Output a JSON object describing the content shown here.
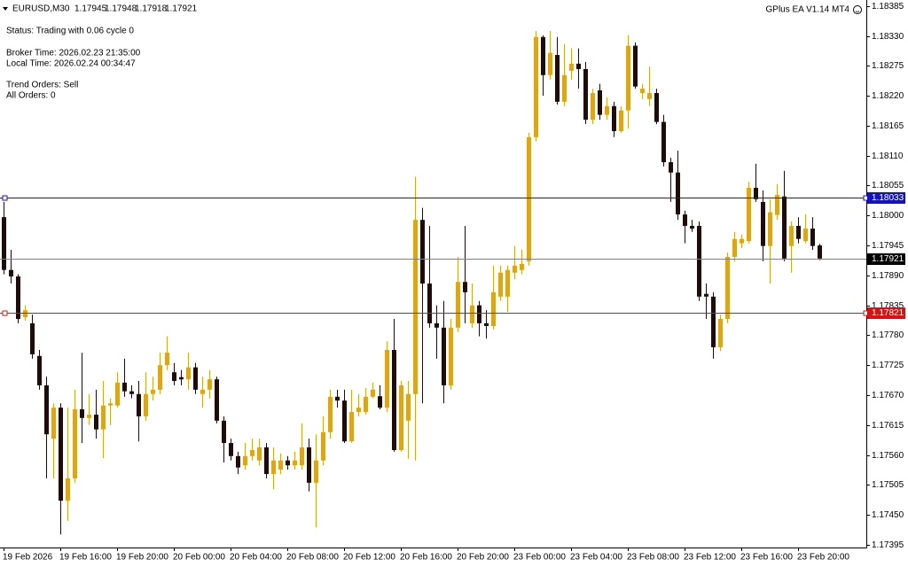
{
  "chart_data": {
    "type": "candlestick",
    "symbol": "EURUSD,M30",
    "ea_label": "GPlus EA  V1.14 MT4",
    "status": "Status: Trading with 0.06 cycle 0",
    "broker_time": "Broker Time: 2026.02.23 21:35:00",
    "local_time": "Local Time: 2026.02.24 00:34:47",
    "trend_orders": "Trend Orders: Sell",
    "all_orders": "All Orders: 0",
    "bull_color": "#daa520",
    "bear_color": "#1e0c0c",
    "bid_color": "#808080",
    "grid": false,
    "categories": [
      "19 Feb 2026",
      null,
      null,
      null,
      null,
      null,
      null,
      null,
      "19 Feb 16:00",
      null,
      null,
      null,
      null,
      null,
      null,
      null,
      "19 Feb 20:00",
      null,
      null,
      null,
      null,
      null,
      null,
      null,
      "20 Feb 00:00",
      null,
      null,
      null,
      null,
      null,
      null,
      null,
      "20 Feb 04:00",
      null,
      null,
      null,
      null,
      null,
      null,
      null,
      "20 Feb 08:00",
      null,
      null,
      null,
      null,
      null,
      null,
      null,
      "20 Feb 12:00",
      null,
      null,
      null,
      null,
      null,
      null,
      null,
      "20 Feb 16:00",
      null,
      null,
      null,
      null,
      null,
      null,
      null,
      "20 Feb 20:00",
      null,
      null,
      null,
      null,
      null,
      null,
      null,
      "23 Feb 00:00",
      null,
      null,
      null,
      null,
      null,
      null,
      null,
      "23 Feb 04:00",
      null,
      null,
      null,
      null,
      null,
      null,
      null,
      "23 Feb 08:00",
      null,
      null,
      null,
      null,
      null,
      null,
      null,
      "23 Feb 12:00",
      null,
      null,
      null,
      null,
      null,
      null,
      null,
      "23 Feb 16:00",
      null,
      null,
      null,
      null,
      null,
      null,
      null,
      "23 Feb 20:00",
      null,
      null,
      null
    ],
    "open": [
      1.17997,
      1.179,
      1.17888,
      1.17813,
      1.17802,
      1.17742,
      1.17688,
      1.1759,
      1.17647,
      1.17476,
      1.17517,
      1.17644,
      1.17628,
      1.17634,
      1.17607,
      1.17651,
      1.17651,
      1.17693,
      1.17677,
      1.17672,
      1.17631,
      1.17672,
      1.1768,
      1.17725,
      1.17712,
      1.17703,
      1.17699,
      1.17721,
      1.17672,
      1.1768,
      1.17699,
      1.17623,
      1.17582,
      1.17558,
      1.17541,
      1.17558,
      1.1755,
      1.17574,
      1.17525,
      1.17533,
      1.1755,
      1.17541,
      1.17541,
      1.17574,
      1.17509,
      1.1755,
      1.17602,
      1.17667,
      1.1766,
      1.17585,
      1.17639,
      1.17639,
      1.17667,
      1.17668,
      1.17647,
      1.17753,
      1.17569,
      1.17623,
      1.17672,
      1.17992,
      1.17875,
      1.17802,
      1.17794,
      1.17688,
      1.17794,
      1.17878,
      1.17802,
      1.17835,
      1.17802,
      1.17797,
      1.17851,
      1.17851,
      1.17895,
      1.179,
      1.17916,
      1.18144,
      1.18328,
      1.18258,
      1.18295,
      1.18209,
      1.18266,
      1.18279,
      1.18269,
      1.18176,
      1.1823,
      1.18185,
      1.18201,
      1.18155,
      1.18193,
      1.18312,
      1.18225,
      1.18214,
      1.18225,
      1.18172,
      1.18098,
      1.18079,
      1.18002,
      1.17981,
      1.17981,
      1.17856,
      1.17851,
      1.17758,
      1.1781,
      1.17924,
      1.17949,
      1.17953,
      1.18051,
      1.18025,
      1.17944,
      1.18001,
      1.18035,
      1.17944,
      1.17981,
      1.17953,
      1.17976,
      1.17945
    ],
    "high": [
      1.18025,
      1.17937,
      1.17892,
      1.17835,
      1.17818,
      1.17753,
      1.17704,
      1.17655,
      1.17655,
      1.17647,
      1.1768,
      1.17748,
      1.17672,
      1.1768,
      1.17696,
      1.17664,
      1.17712,
      1.17737,
      1.17688,
      1.17696,
      1.17712,
      1.17704,
      1.17748,
      1.17778,
      1.17729,
      1.17716,
      1.17748,
      1.17729,
      1.17704,
      1.17716,
      1.17704,
      1.17631,
      1.1759,
      1.17566,
      1.17582,
      1.1759,
      1.1759,
      1.17582,
      1.17574,
      1.17563,
      1.17558,
      1.17566,
      1.17618,
      1.1759,
      1.17598,
      1.17631,
      1.1768,
      1.1768,
      1.1768,
      1.1768,
      1.17672,
      1.17683,
      1.17693,
      1.17688,
      1.17769,
      1.1781,
      1.17696,
      1.17696,
      1.18071,
      1.18014,
      1.17981,
      1.17835,
      1.17843,
      1.1781,
      1.17924,
      1.17981,
      1.17875,
      1.17843,
      1.17826,
      1.17908,
      1.17908,
      1.17908,
      1.17944,
      1.17937,
      1.18152,
      1.18339,
      1.18331,
      1.18339,
      1.18328,
      1.18315,
      1.18307,
      1.18307,
      1.18282,
      1.18233,
      1.18242,
      1.18217,
      1.18209,
      1.18201,
      1.18331,
      1.18318,
      1.18242,
      1.18274,
      1.18233,
      1.18185,
      1.18106,
      1.18119,
      1.18009,
      1.17992,
      1.17989,
      1.17875,
      1.17859,
      1.17818,
      1.17932,
      1.1797,
      1.17965,
      1.18062,
      1.18095,
      1.18046,
      1.1803,
      1.18058,
      1.18082,
      1.17989,
      1.17997,
      1.18002,
      1.17997,
      1.17948
    ],
    "low": [
      1.17892,
      1.17875,
      1.17802,
      1.17807,
      1.17737,
      1.1768,
      1.17517,
      1.17517,
      1.17414,
      1.17439,
      1.17509,
      1.17582,
      1.17615,
      1.1759,
      1.17554,
      1.17615,
      1.17647,
      1.17667,
      1.17664,
      1.17585,
      1.17623,
      1.1766,
      1.17672,
      1.17716,
      1.17688,
      1.17688,
      1.1768,
      1.17672,
      1.17647,
      1.17664,
      1.17618,
      1.17546,
      1.1755,
      1.17525,
      1.17533,
      1.1755,
      1.17541,
      1.17517,
      1.17497,
      1.17525,
      1.17533,
      1.17533,
      1.17533,
      1.17493,
      1.17427,
      1.17541,
      1.1759,
      1.17647,
      1.17582,
      1.17582,
      1.17631,
      1.17634,
      1.17664,
      1.17644,
      1.17639,
      1.17566,
      1.17566,
      1.17553,
      1.1755,
      1.17655,
      1.17794,
      1.17737,
      1.17655,
      1.1768,
      1.17786,
      1.17802,
      1.17794,
      1.17778,
      1.17774,
      1.17791,
      1.17843,
      1.17823,
      1.17883,
      1.17892,
      1.17908,
      1.18136,
      1.1822,
      1.1825,
      1.18204,
      1.18201,
      1.1825,
      1.18233,
      1.18168,
      1.18168,
      1.18176,
      1.18176,
      1.18144,
      1.18152,
      1.1816,
      1.18233,
      1.18214,
      1.18201,
      1.18168,
      1.1809,
      1.18025,
      1.17992,
      1.17949,
      1.1797,
      1.17843,
      1.1781,
      1.17737,
      1.17751,
      1.17802,
      1.17916,
      1.1794,
      1.17949,
      1.18025,
      1.17916,
      1.17875,
      1.17992,
      1.17916,
      1.17895,
      1.17949,
      1.17949,
      1.17937,
      1.17918
    ],
    "close": [
      1.179,
      1.17888,
      1.1781,
      1.17826,
      1.17745,
      1.17688,
      1.17598,
      1.17647,
      1.17476,
      1.17517,
      1.17644,
      1.17628,
      1.17634,
      1.17607,
      1.17651,
      1.17655,
      1.17693,
      1.17677,
      1.17672,
      1.17631,
      1.17672,
      1.1768,
      1.17725,
      1.17748,
      1.17696,
      1.17699,
      1.17721,
      1.1768,
      1.1768,
      1.17699,
      1.17623,
      1.17582,
      1.17558,
      1.17537,
      1.17558,
      1.17569,
      1.17574,
      1.17525,
      1.1755,
      1.1755,
      1.17541,
      1.1755,
      1.17574,
      1.17509,
      1.1755,
      1.17602,
      1.17667,
      1.1766,
      1.17585,
      1.17639,
      1.17647,
      1.17667,
      1.1768,
      1.17647,
      1.17753,
      1.17569,
      1.17688,
      1.17672,
      1.17992,
      1.17875,
      1.17802,
      1.17794,
      1.17688,
      1.17794,
      1.17878,
      1.17859,
      1.17835,
      1.17802,
      1.17797,
      1.17859,
      1.17895,
      1.179,
      1.17908,
      1.17911,
      1.18144,
      1.18328,
      1.18258,
      1.18299,
      1.18209,
      1.18258,
      1.18279,
      1.18269,
      1.18176,
      1.18225,
      1.18185,
      1.18201,
      1.18155,
      1.18193,
      1.18312,
      1.18237,
      1.18233,
      1.18225,
      1.18172,
      1.18098,
      1.18079,
      1.18002,
      1.17981,
      1.17976,
      1.17851,
      1.17851,
      1.17758,
      1.1781,
      1.17924,
      1.17957,
      1.17957,
      1.18051,
      1.1803,
      1.17944,
      1.18006,
      1.18038,
      1.17921,
      1.17981,
      1.17957,
      1.17976,
      1.17944,
      1.17921
    ],
    "ylim": [
      1.1739,
      1.18396
    ],
    "yticks": [
      1.18385,
      {
        "value": 1.1833,
        "label": "1.18330"
      },
      1.18275,
      {
        "value": 1.1822,
        "label": "1.18220"
      },
      1.18165,
      {
        "value": 1.1811,
        "label": "1.18110"
      },
      1.18055,
      {
        "value": 1.18,
        "label": "1.18000"
      },
      1.17945,
      {
        "value": 1.1789,
        "label": "1.17890"
      },
      1.17835,
      {
        "value": 1.1778,
        "label": "1.17780"
      },
      1.17725,
      {
        "value": 1.1767,
        "label": "1.17670"
      },
      1.17615,
      {
        "value": 1.1756,
        "label": "1.17560"
      },
      1.17505,
      {
        "value": 1.1745,
        "label": "1.17450"
      },
      1.17395
    ],
    "hlines": [
      {
        "value": 1.18033,
        "color": "#1414b4"
      },
      {
        "value": 1.17821,
        "color": "#d41414"
      }
    ]
  }
}
